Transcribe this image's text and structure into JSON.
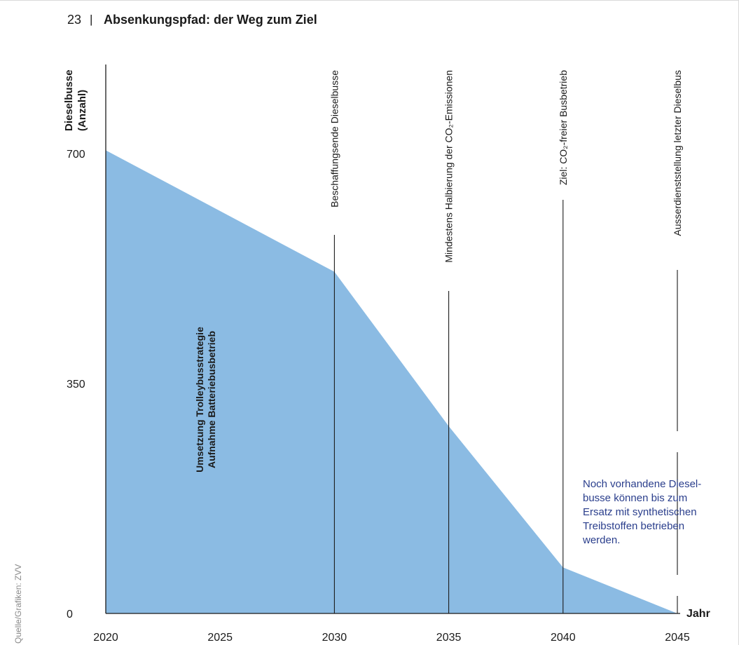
{
  "header": {
    "figure_number": "23",
    "separator": "|",
    "title": "Absenkungspfad: der Weg zum Ziel"
  },
  "source_note": "Quelle/Grafiken: ZVV",
  "colors": {
    "area_fill": "#8bbbe3",
    "milestone_line": "#1a1a1a",
    "annotation_text": "#2a3e8c",
    "text": "#1a1a1a"
  },
  "chart_data": {
    "type": "area",
    "title": "Absenkungspfad: der Weg zum Ziel",
    "ylabel": [
      "Dieselbusse",
      "(Anzahl)"
    ],
    "xlabel": "Jahr",
    "xlim": [
      2020,
      2045
    ],
    "ylim": [
      0,
      700
    ],
    "xticks": [
      2020,
      2025,
      2030,
      2035,
      2040,
      2045
    ],
    "yticks": [
      0,
      350,
      700
    ],
    "grid": false,
    "series": [
      {
        "x": [
          2020,
          2030,
          2035,
          2040,
          2045
        ],
        "y": [
          705,
          520,
          285,
          70,
          0
        ]
      }
    ],
    "milestones": [
      {
        "x": 2030,
        "label": "Beschaffungsende Dieselbusse",
        "line_top": 540
      },
      {
        "x": 2035,
        "label": "Mindestens Halbierung der CO₂-Emissionen",
        "line_top": 460
      },
      {
        "x": 2040,
        "label": "Ziel: CO₂-freier Busbetrieb",
        "line_top": 590
      },
      {
        "x": 2045,
        "label": "Ausserdienststellung letzter Dieselbus",
        "line_top": 490,
        "line_segments": [
          [
            0,
            25
          ],
          [
            55,
            230
          ],
          [
            260,
            490
          ]
        ]
      }
    ],
    "area_label": [
      "Umsetzung Trolleybusstrategie",
      "Aufnahme Batteriebusbetrieb"
    ],
    "annotation": [
      "Noch vorhandene Diesel-",
      "busse können bis zum",
      "Ersatz mit synthetischen",
      "Treibstoffen betrieben",
      "werden."
    ]
  }
}
